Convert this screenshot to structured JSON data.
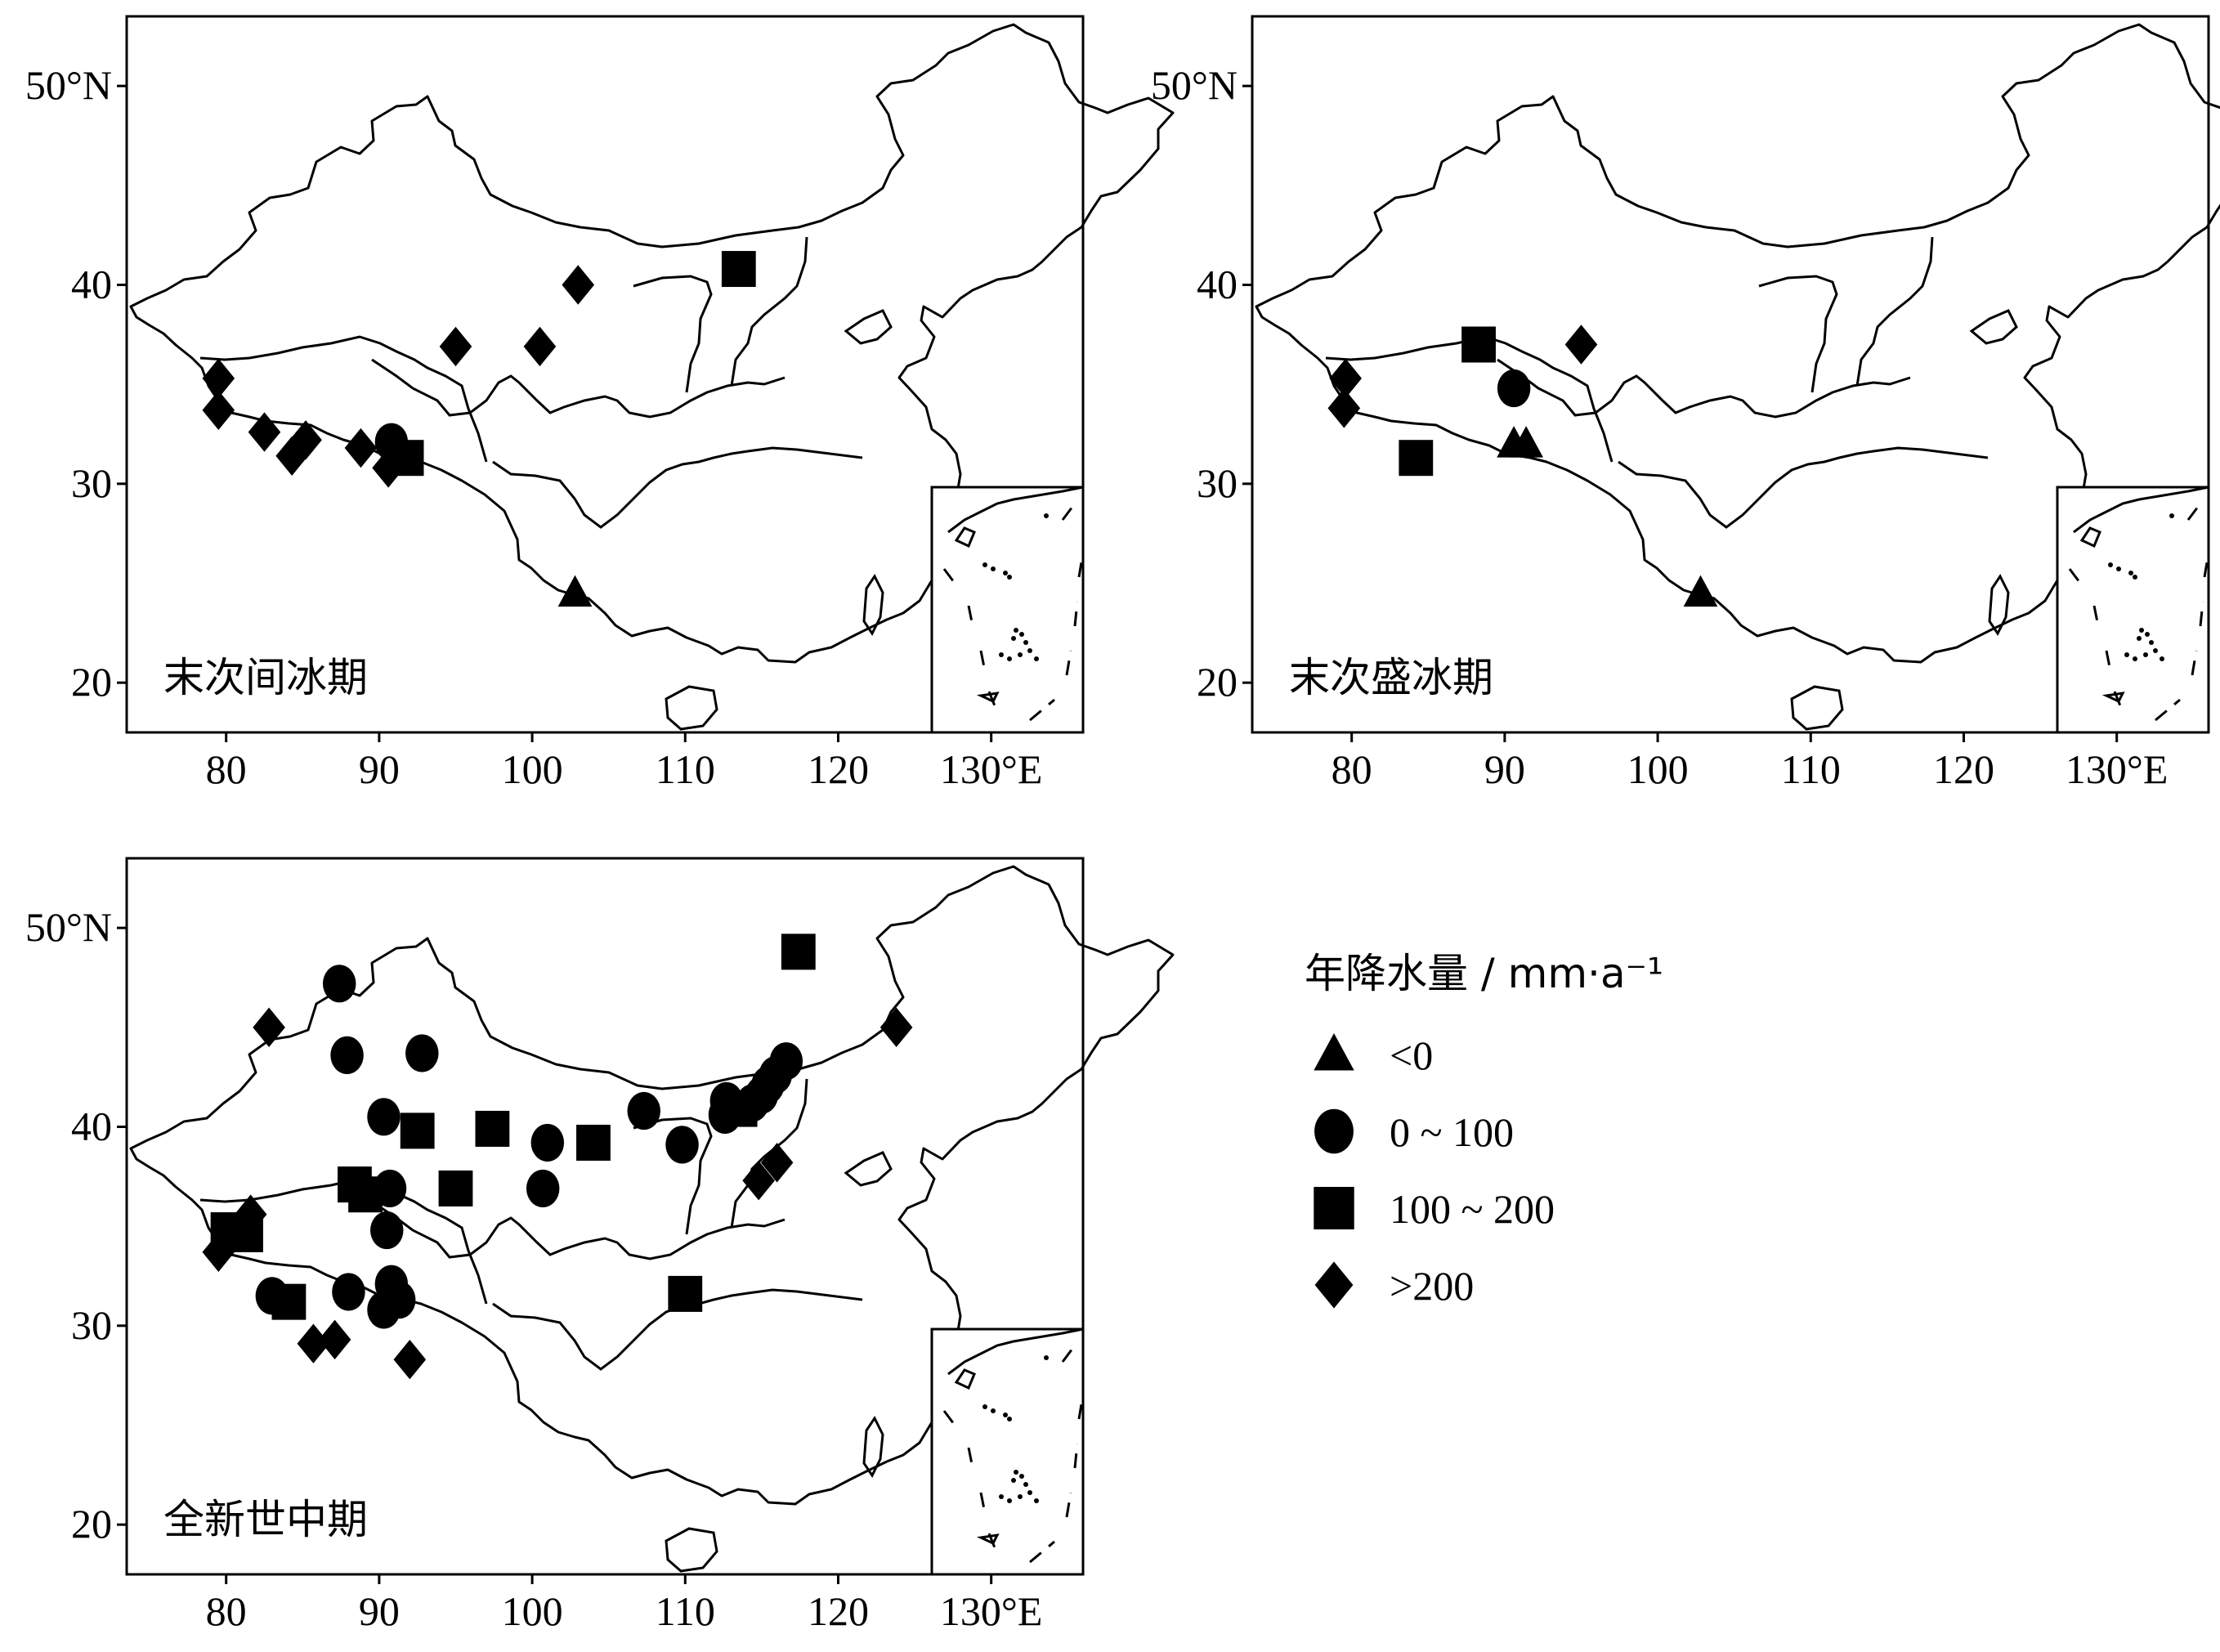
{
  "panels": [
    {
      "title": "末次间冰期",
      "sites": [
        {
          "lon": 79.5,
          "lat": 35.3,
          "cls": "gt200"
        },
        {
          "lon": 79.5,
          "lat": 33.7,
          "cls": "gt200"
        },
        {
          "lon": 82.5,
          "lat": 32.6,
          "cls": "gt200"
        },
        {
          "lon": 84.3,
          "lat": 31.4,
          "cls": "gt200"
        },
        {
          "lon": 85.2,
          "lat": 32.2,
          "cls": "gt200"
        },
        {
          "lon": 88.8,
          "lat": 31.8,
          "cls": "gt200"
        },
        {
          "lon": 90.8,
          "lat": 32.1,
          "cls": "0-100"
        },
        {
          "lon": 91.8,
          "lat": 31.3,
          "cls": "100-200"
        },
        {
          "lon": 90.6,
          "lat": 30.8,
          "cls": "gt200"
        },
        {
          "lon": 95.0,
          "lat": 36.9,
          "cls": "gt200"
        },
        {
          "lon": 100.5,
          "lat": 36.9,
          "cls": "gt200"
        },
        {
          "lon": 103.0,
          "lat": 40.0,
          "cls": "gt200"
        },
        {
          "lon": 113.5,
          "lat": 40.8,
          "cls": "100-200"
        },
        {
          "lon": 102.8,
          "lat": 24.5,
          "cls": "lt0"
        }
      ]
    },
    {
      "title": "末次盛冰期",
      "sites": [
        {
          "lon": 79.6,
          "lat": 35.3,
          "cls": "gt200"
        },
        {
          "lon": 79.5,
          "lat": 33.8,
          "cls": "gt200"
        },
        {
          "lon": 84.2,
          "lat": 31.3,
          "cls": "100-200"
        },
        {
          "lon": 88.3,
          "lat": 37.0,
          "cls": "100-200"
        },
        {
          "lon": 90.6,
          "lat": 34.8,
          "cls": "0-100"
        },
        {
          "lon": 90.6,
          "lat": 32.0,
          "cls": "lt0"
        },
        {
          "lon": 91.4,
          "lat": 32.0,
          "cls": "lt0"
        },
        {
          "lon": 95.0,
          "lat": 37.0,
          "cls": "gt200"
        },
        {
          "lon": 102.8,
          "lat": 24.5,
          "cls": "lt0"
        }
      ]
    },
    {
      "title": "全新世中期",
      "sites": [
        {
          "lon": 82.8,
          "lat": 45.0,
          "cls": "gt200"
        },
        {
          "lon": 87.4,
          "lat": 47.2,
          "cls": "0-100"
        },
        {
          "lon": 87.9,
          "lat": 43.6,
          "cls": "0-100"
        },
        {
          "lon": 92.8,
          "lat": 43.7,
          "cls": "0-100"
        },
        {
          "lon": 90.3,
          "lat": 40.5,
          "cls": "0-100"
        },
        {
          "lon": 92.5,
          "lat": 39.8,
          "cls": "100-200"
        },
        {
          "lon": 97.4,
          "lat": 39.9,
          "cls": "100-200"
        },
        {
          "lon": 101.0,
          "lat": 39.2,
          "cls": "0-100"
        },
        {
          "lon": 104.0,
          "lat": 39.2,
          "cls": "100-200"
        },
        {
          "lon": 107.3,
          "lat": 40.8,
          "cls": "0-100"
        },
        {
          "lon": 109.8,
          "lat": 39.1,
          "cls": "0-100"
        },
        {
          "lon": 112.7,
          "lat": 41.3,
          "cls": "0-100"
        },
        {
          "lon": 112.6,
          "lat": 40.6,
          "cls": "0-100"
        },
        {
          "lon": 113.6,
          "lat": 40.9,
          "cls": "100-200"
        },
        {
          "lon": 114.4,
          "lat": 41.2,
          "cls": "0-100"
        },
        {
          "lon": 115.0,
          "lat": 41.6,
          "cls": "0-100"
        },
        {
          "lon": 115.4,
          "lat": 42.1,
          "cls": "0-100"
        },
        {
          "lon": 115.9,
          "lat": 42.6,
          "cls": "0-100"
        },
        {
          "lon": 116.6,
          "lat": 43.3,
          "cls": "0-100"
        },
        {
          "lon": 117.4,
          "lat": 48.8,
          "cls": "100-200"
        },
        {
          "lon": 123.8,
          "lat": 45.0,
          "cls": "gt200"
        },
        {
          "lon": 114.8,
          "lat": 37.3,
          "cls": "gt200"
        },
        {
          "lon": 116.0,
          "lat": 38.2,
          "cls": "gt200"
        },
        {
          "lon": 88.4,
          "lat": 37.1,
          "cls": "100-200"
        },
        {
          "lon": 89.1,
          "lat": 36.6,
          "cls": "100-200"
        },
        {
          "lon": 90.7,
          "lat": 36.9,
          "cls": "0-100"
        },
        {
          "lon": 95.0,
          "lat": 36.9,
          "cls": "100-200"
        },
        {
          "lon": 100.7,
          "lat": 36.9,
          "cls": "0-100"
        },
        {
          "lon": 90.5,
          "lat": 34.8,
          "cls": "0-100"
        },
        {
          "lon": 80.1,
          "lat": 34.8,
          "cls": "100-200"
        },
        {
          "lon": 81.3,
          "lat": 34.6,
          "cls": "100-200"
        },
        {
          "lon": 81.6,
          "lat": 35.6,
          "cls": "gt200"
        },
        {
          "lon": 79.5,
          "lat": 33.7,
          "cls": "gt200"
        },
        {
          "lon": 83.0,
          "lat": 31.5,
          "cls": "0-100"
        },
        {
          "lon": 84.1,
          "lat": 31.2,
          "cls": "100-200"
        },
        {
          "lon": 88.0,
          "lat": 31.7,
          "cls": "0-100"
        },
        {
          "lon": 90.8,
          "lat": 32.1,
          "cls": "0-100"
        },
        {
          "lon": 91.3,
          "lat": 31.3,
          "cls": "0-100"
        },
        {
          "lon": 90.3,
          "lat": 30.8,
          "cls": "0-100"
        },
        {
          "lon": 85.7,
          "lat": 29.1,
          "cls": "gt200"
        },
        {
          "lon": 87.1,
          "lat": 29.3,
          "cls": "gt200"
        },
        {
          "lon": 92.0,
          "lat": 28.3,
          "cls": "gt200"
        },
        {
          "lon": 110.0,
          "lat": 31.6,
          "cls": "100-200"
        }
      ]
    }
  ],
  "axes": {
    "x_ticks": [
      "80",
      "90",
      "100",
      "110",
      "120",
      "130°E"
    ],
    "x_tick_values": [
      80,
      90,
      100,
      110,
      120,
      130
    ],
    "y_ticks": [
      "20",
      "30",
      "40",
      "50°N"
    ],
    "y_tick_values": [
      20,
      30,
      40,
      50
    ]
  },
  "legend": {
    "title": "年降水量 / mm·a⁻¹",
    "items": [
      {
        "cls": "lt0",
        "label": "<0",
        "symbol": "triangle"
      },
      {
        "cls": "0-100",
        "label": "0 ~ 100",
        "symbol": "circle"
      },
      {
        "cls": "100-200",
        "label": "100 ~ 200",
        "symbol": "square"
      },
      {
        "cls": "gt200",
        "label": ">200",
        "symbol": "diamond"
      }
    ]
  },
  "colors": {
    "marker": "#000000",
    "outline": "#000000",
    "background": "#ffffff"
  }
}
